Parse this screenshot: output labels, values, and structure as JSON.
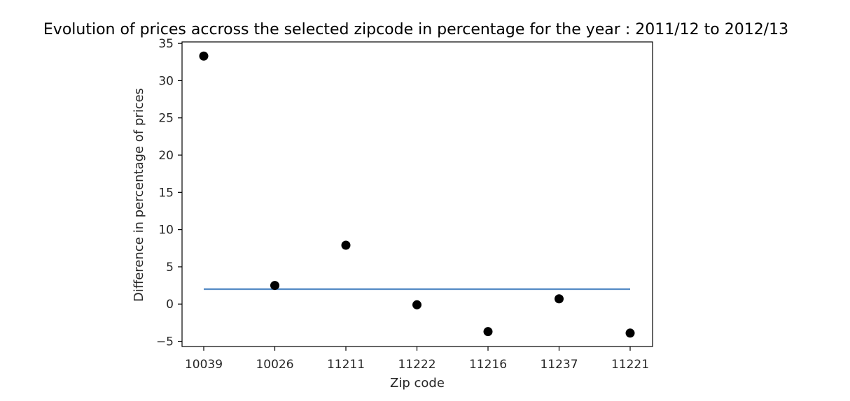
{
  "chart_data": {
    "type": "scatter",
    "title": "Evolution of prices accross the selected zipcode in percentage for the year : 2011/12 to 2012/13",
    "xlabel": "Zip code",
    "ylabel": "Difference in percentage of prices",
    "categories": [
      "10039",
      "10026",
      "11211",
      "11222",
      "11216",
      "11237",
      "11221"
    ],
    "series": [
      {
        "type": "scatter",
        "color": "#000000",
        "values": [
          33.3,
          2.5,
          7.9,
          -0.1,
          -3.7,
          0.7,
          -3.9
        ]
      },
      {
        "type": "line",
        "color": "#5b8fc7",
        "values": [
          2.0,
          2.0,
          2.0,
          2.0,
          2.0,
          2.0,
          2.0
        ]
      }
    ],
    "yticks": [
      -5,
      0,
      5,
      10,
      15,
      20,
      25,
      30,
      35
    ],
    "ylim": [
      -5.7,
      35.2
    ],
    "grid": false,
    "legend": "none"
  }
}
